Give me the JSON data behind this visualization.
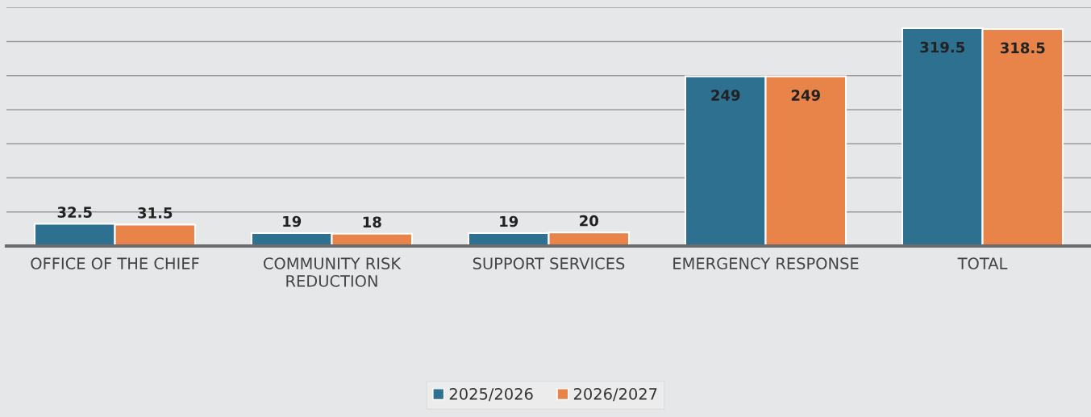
{
  "chart_data": {
    "type": "bar",
    "categories": [
      "OFFICE OF THE CHIEF",
      "COMMUNITY RISK\nREDUCTION",
      "SUPPORT SERVICES",
      "EMERGENCY RESPONSE",
      "TOTAL"
    ],
    "series": [
      {
        "name": "2025/2026",
        "color": "#2e7090",
        "values": [
          32.5,
          19,
          19,
          249,
          319.5
        ]
      },
      {
        "name": "2026/2027",
        "color": "#e8834a",
        "values": [
          31.5,
          18,
          20,
          249,
          318.5
        ]
      }
    ],
    "ylim": [
      0,
      350
    ],
    "yticks": [
      {
        "value": 0,
        "label": null
      },
      {
        "value": 50,
        "label": null
      },
      {
        "value": 100,
        "label": null
      },
      {
        "value": 150,
        "label": null
      },
      {
        "value": 200,
        "label": null
      },
      {
        "value": 250,
        "label": null
      },
      {
        "value": 300,
        "label": null
      },
      {
        "value": 350,
        "label": null
      }
    ],
    "tick_labels": "x",
    "grid": "y",
    "data_labels": true,
    "legend": "bottom"
  }
}
